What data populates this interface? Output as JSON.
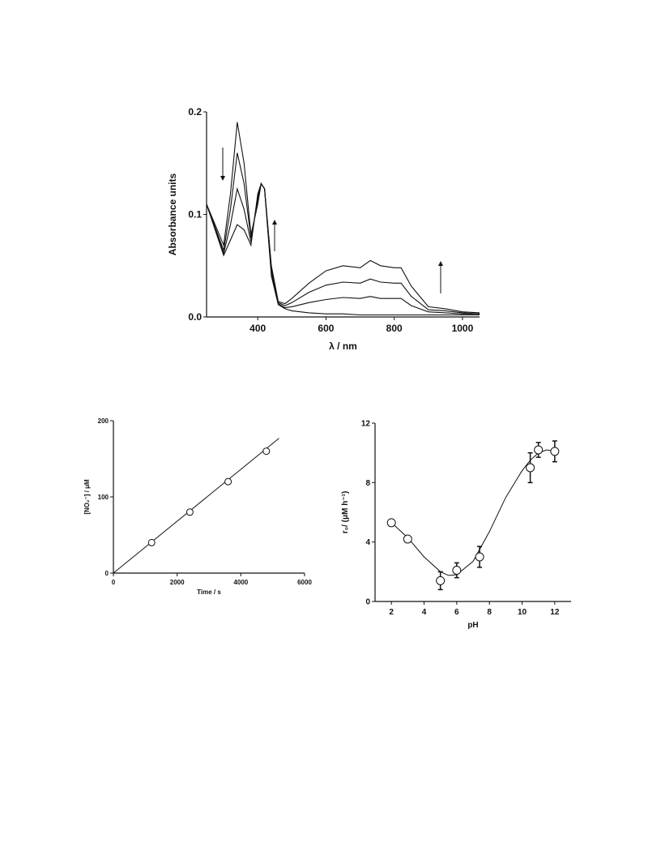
{
  "chart_data": [
    {
      "type": "line",
      "ylabel": "Absorbance units",
      "xlabel": "λ / nm",
      "x": [
        250,
        300,
        320,
        340,
        360,
        380,
        400,
        410,
        420,
        440,
        460,
        480,
        500,
        550,
        600,
        650,
        700,
        730,
        760,
        800,
        820,
        850,
        900,
        950,
        1000,
        1050
      ],
      "series": [
        {
          "color": "#111111",
          "values": [
            0.11,
            0.07,
            0.12,
            0.19,
            0.15,
            0.08,
            0.11,
            0.13,
            0.125,
            0.04,
            0.012,
            0.008,
            0.006,
            0.004,
            0.003,
            0.003,
            0.002,
            0.002,
            0.002,
            0.002,
            0.002,
            0.002,
            0.002,
            0.002,
            0.002,
            0.002
          ]
        },
        {
          "color": "#111111",
          "values": [
            0.11,
            0.065,
            0.105,
            0.16,
            0.13,
            0.077,
            0.113,
            0.13,
            0.125,
            0.043,
            0.013,
            0.009,
            0.01,
            0.014,
            0.017,
            0.019,
            0.018,
            0.02,
            0.018,
            0.018,
            0.018,
            0.011,
            0.005,
            0.004,
            0.003,
            0.003
          ]
        },
        {
          "color": "#111111",
          "values": [
            0.11,
            0.062,
            0.09,
            0.125,
            0.105,
            0.073,
            0.117,
            0.13,
            0.125,
            0.047,
            0.014,
            0.011,
            0.014,
            0.024,
            0.031,
            0.034,
            0.033,
            0.037,
            0.034,
            0.033,
            0.033,
            0.02,
            0.007,
            0.006,
            0.004,
            0.003
          ]
        },
        {
          "color": "#111111",
          "values": [
            0.11,
            0.06,
            0.075,
            0.09,
            0.085,
            0.07,
            0.12,
            0.13,
            0.125,
            0.05,
            0.015,
            0.013,
            0.018,
            0.033,
            0.045,
            0.05,
            0.048,
            0.055,
            0.05,
            0.048,
            0.048,
            0.03,
            0.01,
            0.008,
            0.005,
            0.004
          ]
        }
      ],
      "xlim": [
        250,
        1050
      ],
      "xticks": [
        400,
        600,
        800,
        1000
      ],
      "ylim": [
        0,
        0.2
      ],
      "yticks": [
        {
          "value": 0,
          "label": "0.0"
        },
        0.1,
        0.2
      ]
    },
    {
      "type": "scatter",
      "ylabel": "[NO₂⁻] / μM",
      "xlabel": "Time / s",
      "x": [
        1200,
        2400,
        3600,
        4800
      ],
      "values": [
        40,
        80,
        120,
        160
      ],
      "fit": {
        "x": [
          0,
          5200
        ],
        "values": [
          0,
          177
        ]
      },
      "xlim": [
        0,
        6000
      ],
      "xticks": [
        0,
        2000,
        4000,
        6000
      ],
      "ylim": [
        0,
        200
      ],
      "yticks": [
        0,
        100,
        200
      ]
    },
    {
      "type": "scatter",
      "ylabel": "r₀/ (μM h⁻¹)",
      "xlabel": "pH",
      "x": [
        2,
        3,
        5,
        6,
        7.4,
        10.5,
        11,
        12
      ],
      "values": [
        5.3,
        4.2,
        1.4,
        2.1,
        3.0,
        9.0,
        10.2,
        10.1
      ],
      "errors": [
        0.1,
        0.2,
        0.6,
        0.5,
        0.7,
        1.0,
        0.5,
        0.7
      ],
      "fit": {
        "x": [
          2,
          3,
          4,
          5,
          5.5,
          6,
          7,
          8,
          9,
          10,
          10.5,
          11,
          11.5,
          12
        ],
        "values": [
          5.3,
          4.3,
          3.0,
          2.0,
          1.75,
          1.8,
          2.7,
          4.7,
          7.0,
          8.8,
          9.5,
          10.0,
          10.2,
          10.1
        ]
      },
      "xlim": [
        1,
        13
      ],
      "xticks": [
        2,
        4,
        6,
        8,
        10,
        12
      ],
      "ylim": [
        0,
        12
      ],
      "yticks": [
        0,
        4,
        8,
        12
      ]
    }
  ]
}
